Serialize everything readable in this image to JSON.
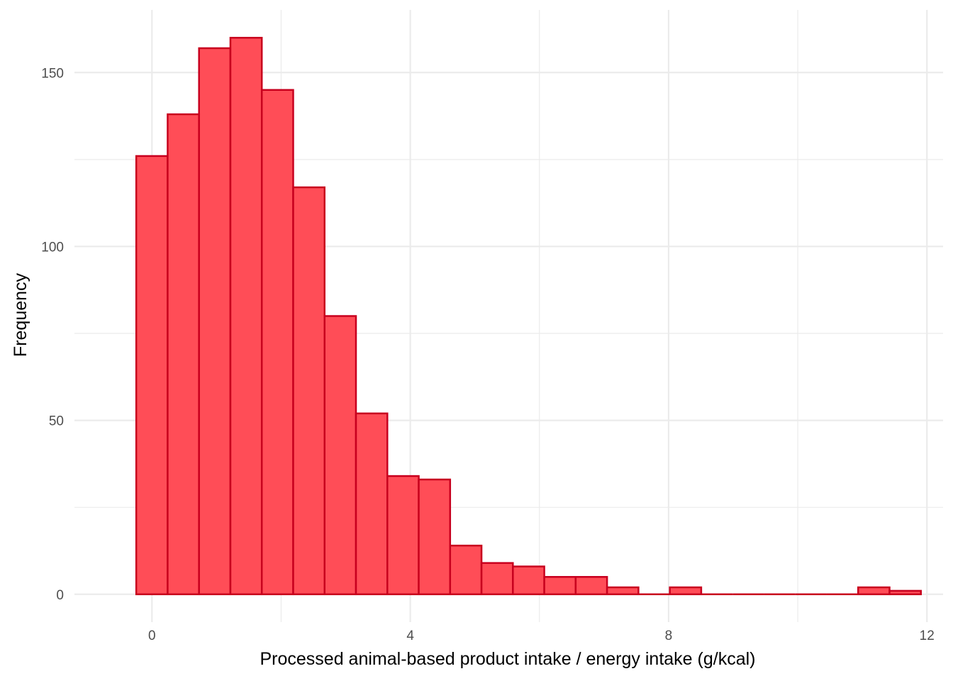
{
  "chart_data": {
    "type": "bar",
    "title": "",
    "xlabel": "Processed animal-based product intake / energy intake (g/kcal)",
    "ylabel": "Frequency",
    "xlim": [
      -1.2,
      12.25
    ],
    "ylim": [
      -8,
      168
    ],
    "grid": true,
    "legend": "none",
    "x_ticks": [
      {
        "value": 0,
        "label": "0"
      },
      {
        "value": 4,
        "label": "4"
      },
      {
        "value": 8,
        "label": "8"
      },
      {
        "value": 12,
        "label": "12"
      }
    ],
    "x_minor_ticks": [
      2,
      6,
      10
    ],
    "y_ticks": [
      {
        "value": 0,
        "label": "0"
      },
      {
        "value": 50,
        "label": "50"
      },
      {
        "value": 100,
        "label": "100"
      },
      {
        "value": 150,
        "label": "150"
      }
    ],
    "y_minor_ticks": [
      25,
      75,
      125
    ],
    "bin_start": -0.243,
    "bin_width": 0.486,
    "values": [
      126,
      138,
      157,
      160,
      145,
      117,
      80,
      52,
      34,
      33,
      14,
      9,
      8,
      5,
      5,
      2,
      0,
      2,
      0,
      0,
      0,
      0,
      0,
      2,
      1
    ],
    "colors": {
      "fill": "#ff4d57",
      "stroke": "#c8001e",
      "grid": "#ebebeb",
      "tick_text": "#4d4d4d"
    }
  }
}
